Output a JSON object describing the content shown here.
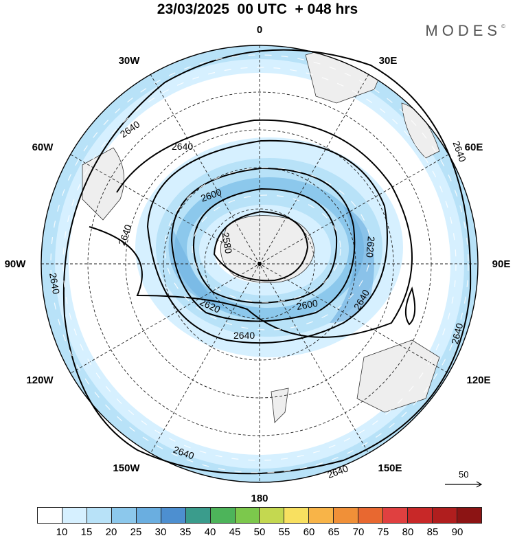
{
  "title": "23/03/2025  00 UTC  + 048 hrs",
  "brand": {
    "name": "MODES",
    "mark": "©"
  },
  "longitude_labels": {
    "l0": "0",
    "l30e": "30E",
    "l60e": "60E",
    "l90e": "90E",
    "l120e": "120E",
    "l150e": "150E",
    "l180": "180",
    "l150w": "150W",
    "l120w": "120W",
    "l90w": "90W",
    "l60w": "60W",
    "l30w": "30W"
  },
  "contour_labels": {
    "c1": "2640",
    "c2": "2640",
    "c3": "2640",
    "c4": "2640",
    "c5": "2640",
    "c6": "2640",
    "c7": "2640",
    "c8": "2640",
    "c9": "2640",
    "c10": "2640",
    "c11": "2600",
    "c12": "2580",
    "c13": "2620",
    "c14": "2620",
    "c15": "2600",
    "c16": "2640"
  },
  "reference_vector": {
    "label": "50"
  },
  "colorbar": {
    "colors": [
      "#ffffff",
      "#d6f0ff",
      "#b8e2f8",
      "#8cc8ec",
      "#6aaee0",
      "#4d8fd0",
      "#3a9c8c",
      "#4db45a",
      "#7cc84c",
      "#c4d850",
      "#f8e060",
      "#f8b448",
      "#f09038",
      "#e86830",
      "#e04040",
      "#c82828",
      "#b01e1e",
      "#8c1414"
    ],
    "ticks": [
      "10",
      "15",
      "20",
      "25",
      "30",
      "35",
      "40",
      "45",
      "50",
      "55",
      "60",
      "65",
      "70",
      "75",
      "80",
      "85",
      "90"
    ]
  }
}
